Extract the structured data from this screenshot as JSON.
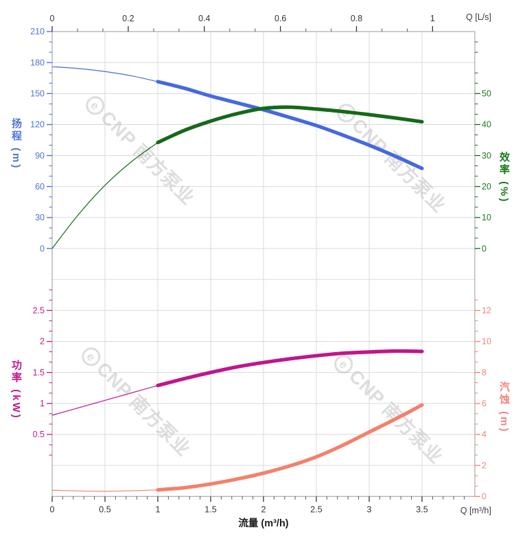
{
  "watermark": {
    "logo_letter": "e",
    "text": "CNP 南方泵业"
  },
  "chart_data": {
    "type": "line",
    "title": "",
    "x_axis_bottom": {
      "title": "流量 (m³/h)",
      "unit": "Q [m³/h]",
      "range": [
        0,
        4
      ],
      "major_ticks": [
        0,
        0.5,
        1,
        1.5,
        2,
        2.5,
        3,
        3.5
      ],
      "minor_step": 0.1,
      "minor_max": 3.9
    },
    "x_axis_top": {
      "unit": "Q [L/s]",
      "major_ticks": [
        0,
        0.2,
        0.4,
        0.6,
        0.8,
        1
      ],
      "minor_step": 0.0667,
      "ls_to_m3h": 3.6
    },
    "y_axes": {
      "head": {
        "title": "扬程 (m)",
        "color": "#4569E0",
        "label_color": "#4F74D8",
        "range": [
          0,
          210
        ],
        "major_ticks": [
          0,
          30,
          60,
          90,
          120,
          150,
          180,
          210
        ],
        "minor_step": 10
      },
      "efficiency": {
        "title": "效率 (%)",
        "color": "#156919",
        "label_color": "#1B7A1B",
        "major_ticks": [
          0,
          10,
          20,
          30,
          40,
          50
        ],
        "minor_step": 3.333,
        "minor_max": 66.7,
        "units_per_gridline": 10
      },
      "power": {
        "title": "功率 (kW)",
        "color": "#C0168C",
        "label_color": "#C2188C",
        "major_ticks": [
          0.5,
          1,
          1.5,
          2,
          2.5
        ],
        "minor_step": 0.1667,
        "minor_max": 2.84,
        "units_per_gridline": 0.5
      },
      "npsh": {
        "title": "汽蚀 (m)",
        "color": "#F4806B",
        "label_color": "#F4827B",
        "major_ticks": [
          0,
          2,
          4,
          6,
          8,
          10,
          12
        ],
        "minor_step": 0.667,
        "minor_max": 12.7,
        "units_per_gridline": 2
      }
    },
    "series": [
      {
        "name": "head",
        "y_axis": "head",
        "color": "#4569E0",
        "thin": [
          [
            0,
            176
          ],
          [
            0.25,
            174.2
          ],
          [
            0.5,
            171.3
          ],
          [
            0.75,
            167.2
          ],
          [
            1,
            161.5
          ]
        ],
        "thick": [
          [
            1,
            161.5
          ],
          [
            1.25,
            155.2
          ],
          [
            1.5,
            147.6
          ],
          [
            1.75,
            141
          ],
          [
            2,
            134.3
          ],
          [
            2.25,
            126.8
          ],
          [
            2.5,
            119
          ],
          [
            2.75,
            109.8
          ],
          [
            3,
            100
          ],
          [
            3.25,
            89.2
          ],
          [
            3.5,
            77.5
          ]
        ]
      },
      {
        "name": "efficiency",
        "y_axis": "efficiency",
        "color": "#156919",
        "thin": [
          [
            0,
            0
          ],
          [
            0.25,
            11
          ],
          [
            0.5,
            20.4
          ],
          [
            0.75,
            28
          ],
          [
            1,
            34.2
          ]
        ],
        "thick": [
          [
            1,
            34.2
          ],
          [
            1.25,
            38.1
          ],
          [
            1.5,
            41.1
          ],
          [
            1.75,
            43.5
          ],
          [
            2,
            45.2
          ],
          [
            2.25,
            45.6
          ],
          [
            2.5,
            45.0
          ],
          [
            2.75,
            44.2
          ],
          [
            3,
            43.2
          ],
          [
            3.25,
            42.1
          ],
          [
            3.5,
            40.9
          ]
        ]
      },
      {
        "name": "power",
        "y_axis": "power",
        "color": "#C0168C",
        "thin": [
          [
            0,
            0.81
          ],
          [
            0.25,
            0.93
          ],
          [
            0.5,
            1.05
          ],
          [
            0.75,
            1.17
          ],
          [
            1,
            1.29
          ]
        ],
        "thick": [
          [
            1,
            1.29
          ],
          [
            1.25,
            1.4
          ],
          [
            1.5,
            1.5
          ],
          [
            1.75,
            1.59
          ],
          [
            2,
            1.66
          ],
          [
            2.25,
            1.72
          ],
          [
            2.5,
            1.77
          ],
          [
            2.75,
            1.81
          ],
          [
            3,
            1.83
          ],
          [
            3.25,
            1.845
          ],
          [
            3.5,
            1.84
          ]
        ]
      },
      {
        "name": "npsh",
        "y_axis": "npsh",
        "color": "#F4806B",
        "thin": [
          [
            0,
            0.4
          ],
          [
            0.5,
            0.33
          ],
          [
            1,
            0.42
          ]
        ],
        "thick": [
          [
            1,
            0.42
          ],
          [
            1.25,
            0.56
          ],
          [
            1.5,
            0.8
          ],
          [
            1.75,
            1.12
          ],
          [
            2,
            1.5
          ],
          [
            2.25,
            1.97
          ],
          [
            2.5,
            2.55
          ],
          [
            2.75,
            3.3
          ],
          [
            3,
            4.15
          ],
          [
            3.25,
            5.0
          ],
          [
            3.5,
            5.9
          ]
        ]
      }
    ],
    "grid": {
      "color": "#D9D9D9",
      "frame_color": "#A9A9A9",
      "h_gridlines": 16,
      "v_gridline_step_m3h": 0.5
    }
  }
}
